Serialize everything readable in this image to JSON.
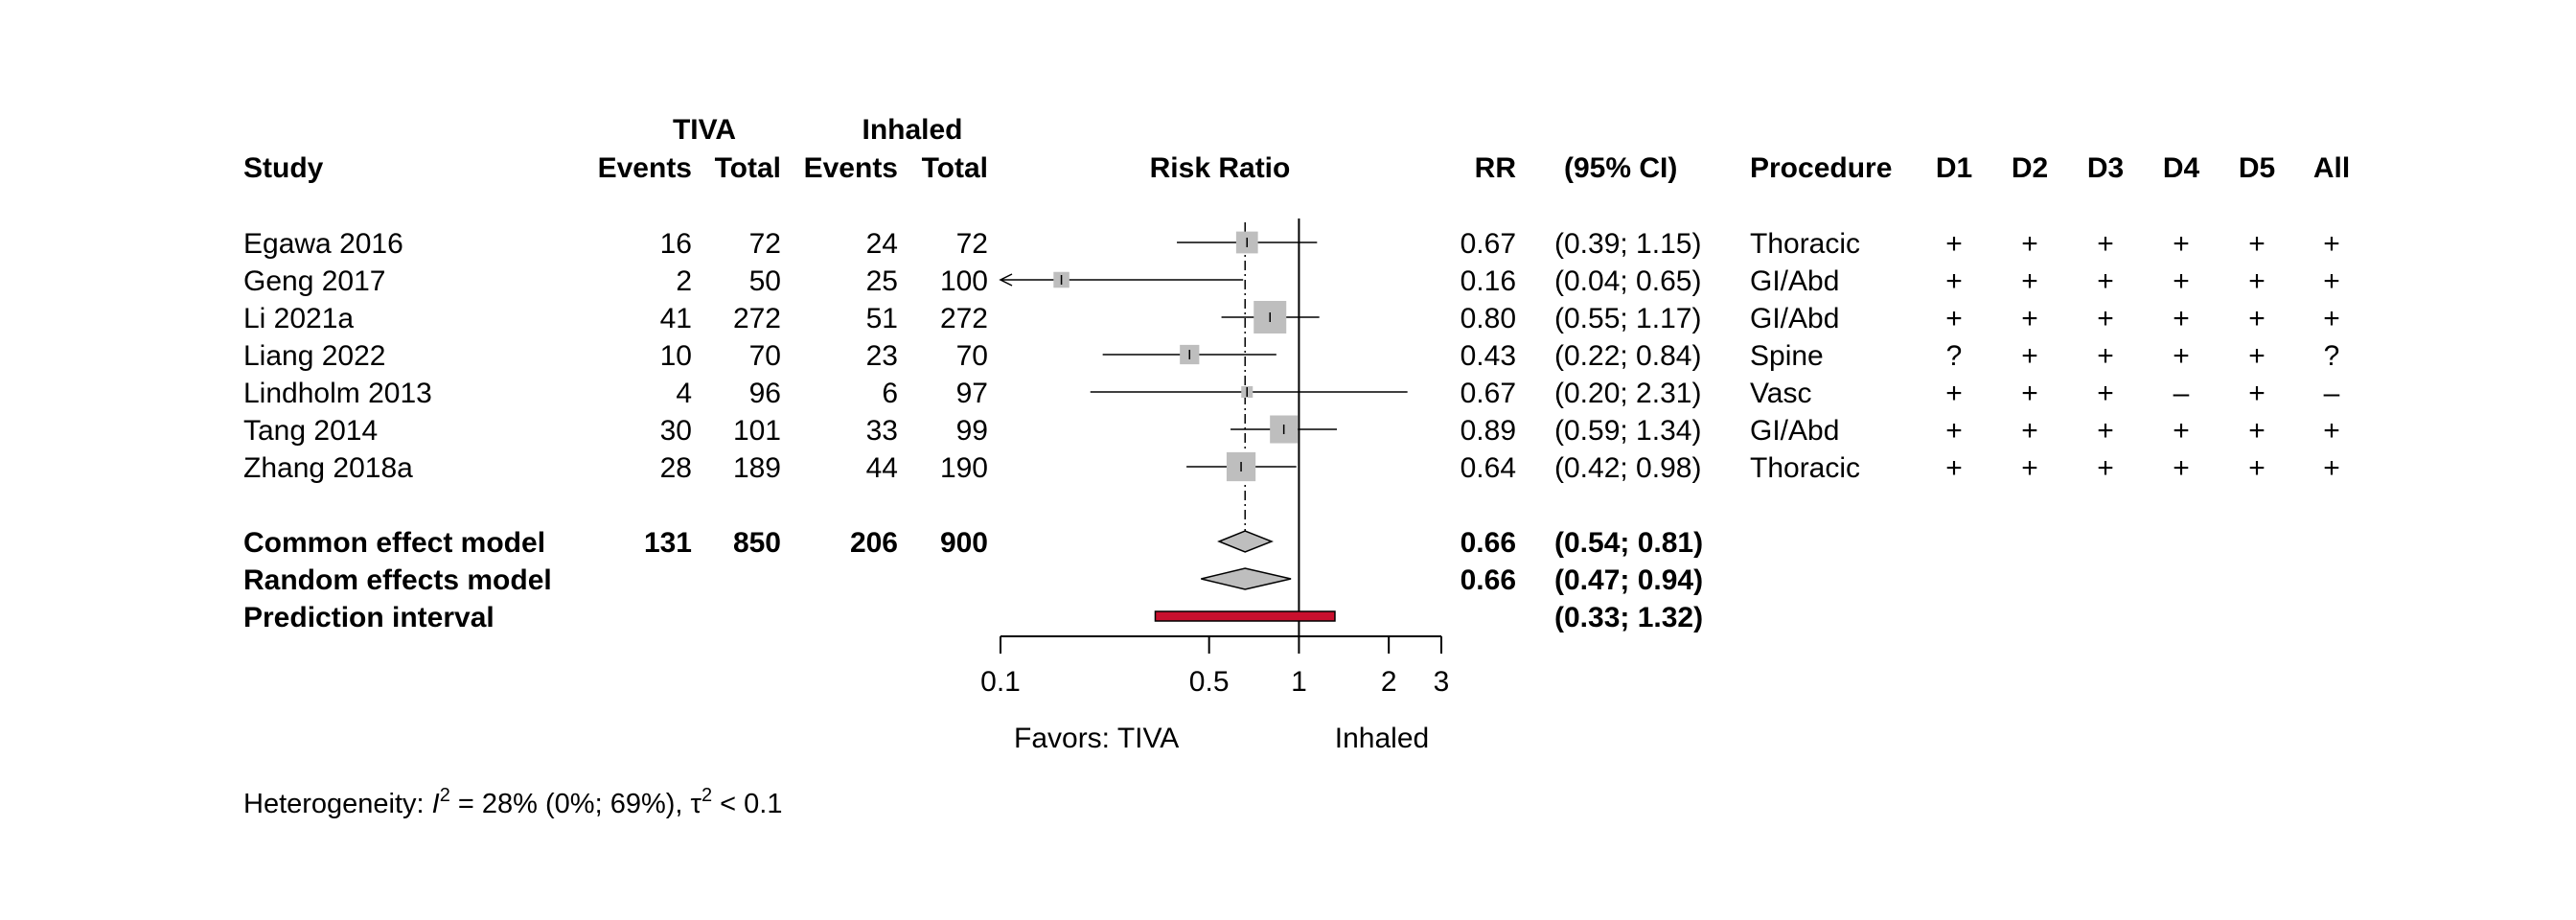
{
  "chart_data": {
    "type": "forest",
    "headers": {
      "group1": "TIVA",
      "group2": "Inhaled",
      "study": "Study",
      "events": "Events",
      "total": "Total",
      "effect": "Risk Ratio",
      "rr": "RR",
      "ci": "(95% CI)",
      "procedure": "Procedure",
      "domains": [
        "D1",
        "D2",
        "D3",
        "D4",
        "D5",
        "All"
      ]
    },
    "studies": [
      {
        "study": "Egawa 2016",
        "e1": "16",
        "n1": "72",
        "e2": "24",
        "n2": "72",
        "rr": 0.67,
        "lower": 0.39,
        "upper": 1.15,
        "rr_text": "0.67",
        "ci_text": "(0.39; 1.15)",
        "procedure": "Thoracic",
        "rob": [
          "+",
          "+",
          "+",
          "+",
          "+",
          "+"
        ],
        "weight": 0.55
      },
      {
        "study": "Geng 2017",
        "e1": "2",
        "n1": "50",
        "e2": "25",
        "n2": "100",
        "rr": 0.16,
        "lower": 0.04,
        "upper": 0.65,
        "rr_text": "0.16",
        "ci_text": "(0.04; 0.65)",
        "procedure": "GI/Abd",
        "rob": [
          "+",
          "+",
          "+",
          "+",
          "+",
          "+"
        ],
        "weight": 0.3
      },
      {
        "study": "Li 2021a",
        "e1": "41",
        "n1": "272",
        "e2": "51",
        "n2": "272",
        "rr": 0.8,
        "lower": 0.55,
        "upper": 1.17,
        "rr_text": "0.80",
        "ci_text": "(0.55; 1.17)",
        "procedure": "GI/Abd",
        "rob": [
          "+",
          "+",
          "+",
          "+",
          "+",
          "+"
        ],
        "weight": 1.0
      },
      {
        "study": "Liang 2022",
        "e1": "10",
        "n1": "70",
        "e2": "23",
        "n2": "70",
        "rr": 0.43,
        "lower": 0.22,
        "upper": 0.84,
        "rr_text": "0.43",
        "ci_text": "(0.22; 0.84)",
        "procedure": "Spine",
        "rob": [
          "?",
          "+",
          "+",
          "+",
          "+",
          "?"
        ],
        "weight": 0.45
      },
      {
        "study": "Lindholm 2013",
        "e1": "4",
        "n1": "96",
        "e2": "6",
        "n2": "97",
        "rr": 0.67,
        "lower": 0.2,
        "upper": 2.31,
        "rr_text": "0.67",
        "ci_text": "(0.20; 2.31)",
        "procedure": "Vasc",
        "rob": [
          "+",
          "+",
          "+",
          "–",
          "+",
          "–"
        ],
        "weight": 0.12
      },
      {
        "study": "Tang 2014",
        "e1": "30",
        "n1": "101",
        "e2": "33",
        "n2": "99",
        "rr": 0.89,
        "lower": 0.59,
        "upper": 1.34,
        "rr_text": "0.89",
        "ci_text": "(0.59; 1.34)",
        "procedure": "GI/Abd",
        "rob": [
          "+",
          "+",
          "+",
          "+",
          "+",
          "+"
        ],
        "weight": 0.8
      },
      {
        "study": "Zhang 2018a",
        "e1": "28",
        "n1": "189",
        "e2": "44",
        "n2": "190",
        "rr": 0.64,
        "lower": 0.42,
        "upper": 0.98,
        "rr_text": "0.64",
        "ci_text": "(0.42; 0.98)",
        "procedure": "Thoracic",
        "rob": [
          "+",
          "+",
          "+",
          "+",
          "+",
          "+"
        ],
        "weight": 0.85
      }
    ],
    "pooled": [
      {
        "label": "Common effect model",
        "e1": "131",
        "n1": "850",
        "e2": "206",
        "n2": "900",
        "rr": 0.66,
        "lower": 0.54,
        "upper": 0.81,
        "rr_text": "0.66",
        "ci_text": "(0.54; 0.81)"
      },
      {
        "label": "Random effects model",
        "e1": "",
        "n1": "",
        "e2": "",
        "n2": "",
        "rr": 0.66,
        "lower": 0.47,
        "upper": 0.94,
        "rr_text": "0.66",
        "ci_text": "(0.47; 0.94)"
      }
    ],
    "prediction_interval": {
      "label": "Prediction interval",
      "lower": 0.33,
      "upper": 1.32,
      "ci_text": "(0.33; 1.32)"
    },
    "axis": {
      "scale": "log",
      "range": [
        0.1,
        3
      ],
      "ticks": [
        0.1,
        0.5,
        1,
        2,
        3
      ],
      "tick_labels": [
        "0.1",
        "0.5",
        "1",
        "2",
        "3"
      ],
      "reference": 1
    },
    "favors_left": "Favors: TIVA",
    "favors_right": "Inhaled",
    "heterogeneity": {
      "prefix": "Heterogeneity: ",
      "i2_symbol": "I",
      "i2_value": " = 28% (0%; 69%), ",
      "tau_symbol": "τ",
      "tau_value": " < 0.1"
    },
    "colors": {
      "box": "#bebebe",
      "diamond": "#bebebe",
      "prediction": "#c8102e",
      "line": "#000000"
    }
  }
}
